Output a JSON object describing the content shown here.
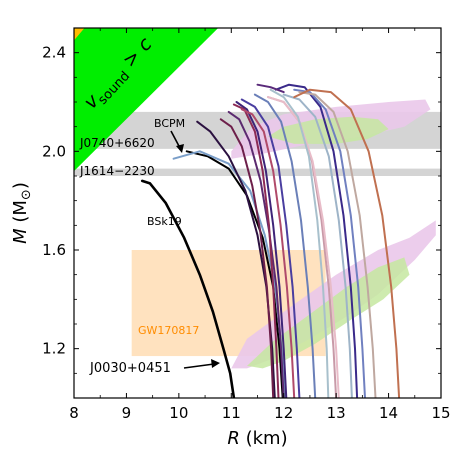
{
  "chart_data": {
    "type": "line",
    "title": "",
    "xlabel_var": "R",
    "xlabel_unit": "(km)",
    "ylabel_var": "M",
    "ylabel_unit": "(M",
    "ylabel_close": ")",
    "xlim": [
      8,
      15
    ],
    "ylim": [
      1.0,
      2.5
    ],
    "x_ticks": [
      8,
      9,
      10,
      11,
      12,
      13,
      14,
      15
    ],
    "y_ticks": [
      1.2,
      1.6,
      2.0,
      2.4
    ],
    "x_tick_labels": [
      "8",
      "9",
      "10",
      "11",
      "12",
      "13",
      "14",
      "15"
    ],
    "y_tick_labels": [
      "1.2",
      "1.6",
      "2.0",
      "2.4"
    ],
    "causality": {
      "label_main": "v",
      "label_sub": "sound",
      "label_rest": " > c",
      "fill_color": "#00ee00",
      "corner_color": "#ffbb00"
    },
    "mass_bands": [
      {
        "name": "J0740+6620",
        "m_low": 2.01,
        "m_high": 2.16,
        "color": "#d4d4d4"
      },
      {
        "name": "J1614−2230",
        "m_low": 1.9,
        "m_high": 1.93,
        "color": "#d4d4d4"
      }
    ],
    "gw_box": {
      "name": "GW170817",
      "r_min": 9.1,
      "r_max": 12.8,
      "m_min": 1.17,
      "m_max": 1.6,
      "color": "#ffe2bf",
      "label_color": "#ff8c00"
    },
    "nicer_j0740": {
      "outer_color": "#eac8ea",
      "inner_color": "#c5e8a0",
      "outer": [
        [
          11.0,
          2.0
        ],
        [
          11.4,
          2.1
        ],
        [
          12.0,
          2.15
        ],
        [
          13.0,
          2.18
        ],
        [
          14.0,
          2.2
        ],
        [
          14.7,
          2.21
        ],
        [
          14.8,
          2.17
        ],
        [
          14.3,
          2.1
        ],
        [
          13.5,
          2.06
        ],
        [
          12.5,
          2.03
        ],
        [
          11.6,
          1.99
        ],
        [
          11.0,
          1.97
        ]
      ],
      "inner": [
        [
          11.7,
          2.06
        ],
        [
          12.0,
          2.1
        ],
        [
          12.6,
          2.13
        ],
        [
          13.3,
          2.14
        ],
        [
          13.8,
          2.13
        ],
        [
          14.0,
          2.09
        ],
        [
          13.6,
          2.05
        ],
        [
          13.0,
          2.03
        ],
        [
          12.2,
          2.03
        ]
      ]
    },
    "nicer_j0030": {
      "outer_color": "#eac8ea",
      "inner_color": "#c5e8a0",
      "outer": [
        [
          11.0,
          1.12
        ],
        [
          11.3,
          1.24
        ],
        [
          12.2,
          1.38
        ],
        [
          13.0,
          1.5
        ],
        [
          13.8,
          1.6
        ],
        [
          14.4,
          1.65
        ],
        [
          14.9,
          1.72
        ],
        [
          14.9,
          1.66
        ],
        [
          14.5,
          1.56
        ],
        [
          13.8,
          1.42
        ],
        [
          13.2,
          1.33
        ],
        [
          12.5,
          1.24
        ],
        [
          11.8,
          1.16
        ],
        [
          11.3,
          1.12
        ]
      ],
      "inner": [
        [
          11.3,
          1.13
        ],
        [
          11.8,
          1.23
        ],
        [
          12.5,
          1.34
        ],
        [
          13.2,
          1.45
        ],
        [
          13.8,
          1.53
        ],
        [
          14.3,
          1.57
        ],
        [
          14.4,
          1.5
        ],
        [
          13.9,
          1.4
        ],
        [
          13.3,
          1.32
        ],
        [
          12.6,
          1.22
        ],
        [
          12.0,
          1.15
        ],
        [
          11.6,
          1.12
        ]
      ]
    },
    "annotations": {
      "bcpm": "BCPM",
      "bsk19": "BSk19",
      "j0030": "J0030+0451"
    },
    "series": [
      {
        "color": "#000000",
        "width": 2.6,
        "points": [
          [
            11.05,
            1.0
          ],
          [
            10.98,
            1.1
          ],
          [
            10.85,
            1.2
          ],
          [
            10.65,
            1.35
          ],
          [
            10.4,
            1.5
          ],
          [
            10.1,
            1.65
          ],
          [
            9.75,
            1.79
          ],
          [
            9.45,
            1.87
          ],
          [
            9.3,
            1.88
          ]
        ]
      },
      {
        "color": "#000000",
        "width": 2.0,
        "points": [
          [
            11.98,
            1.0
          ],
          [
            11.92,
            1.2
          ],
          [
            11.8,
            1.45
          ],
          [
            11.6,
            1.65
          ],
          [
            11.3,
            1.82
          ],
          [
            10.95,
            1.93
          ],
          [
            10.55,
            1.98
          ],
          [
            10.15,
            2.0
          ]
        ]
      },
      {
        "color": "#7a9ec8",
        "width": 2.0,
        "points": [
          [
            12.02,
            1.0
          ],
          [
            11.96,
            1.2
          ],
          [
            11.84,
            1.45
          ],
          [
            11.64,
            1.66
          ],
          [
            11.36,
            1.84
          ],
          [
            10.95,
            1.95
          ],
          [
            10.4,
            2.0
          ],
          [
            9.9,
            1.97
          ]
        ]
      },
      {
        "color": "#2b1140",
        "width": 2.0,
        "points": [
          [
            11.83,
            1.0
          ],
          [
            11.78,
            1.2
          ],
          [
            11.67,
            1.45
          ],
          [
            11.5,
            1.66
          ],
          [
            11.27,
            1.84
          ],
          [
            10.95,
            1.98
          ],
          [
            10.6,
            2.08
          ],
          [
            10.35,
            2.12
          ]
        ]
      },
      {
        "color": "#6d1f4a",
        "width": 2.0,
        "points": [
          [
            11.8,
            1.0
          ],
          [
            11.76,
            1.2
          ],
          [
            11.68,
            1.45
          ],
          [
            11.55,
            1.68
          ],
          [
            11.4,
            1.86
          ],
          [
            11.2,
            2.02
          ],
          [
            11.0,
            2.1
          ],
          [
            10.8,
            2.13
          ]
        ]
      },
      {
        "color": "#5b2a6f",
        "width": 2.0,
        "points": [
          [
            12.0,
            1.0
          ],
          [
            11.95,
            1.2
          ],
          [
            11.86,
            1.45
          ],
          [
            11.72,
            1.68
          ],
          [
            11.56,
            1.88
          ],
          [
            11.35,
            2.04
          ],
          [
            11.15,
            2.13
          ],
          [
            10.95,
            2.16
          ]
        ]
      },
      {
        "color": "#3e2478",
        "width": 2.0,
        "points": [
          [
            12.05,
            1.0
          ],
          [
            12.0,
            1.2
          ],
          [
            11.92,
            1.45
          ],
          [
            11.8,
            1.7
          ],
          [
            11.66,
            1.92
          ],
          [
            11.5,
            2.08
          ],
          [
            11.3,
            2.17
          ],
          [
            11.1,
            2.2
          ]
        ]
      },
      {
        "color": "#8c2a55",
        "width": 2.0,
        "points": [
          [
            11.9,
            1.0
          ],
          [
            11.86,
            1.2
          ],
          [
            11.8,
            1.45
          ],
          [
            11.72,
            1.7
          ],
          [
            11.6,
            1.92
          ],
          [
            11.45,
            2.08
          ],
          [
            11.25,
            2.17
          ],
          [
            11.05,
            2.19
          ]
        ]
      },
      {
        "color": "#b04a6a",
        "width": 2.0,
        "points": [
          [
            12.2,
            1.0
          ],
          [
            12.15,
            1.2
          ],
          [
            12.06,
            1.45
          ],
          [
            11.94,
            1.7
          ],
          [
            11.8,
            1.92
          ],
          [
            11.62,
            2.08
          ],
          [
            11.4,
            2.15
          ],
          [
            11.2,
            2.17
          ]
        ]
      },
      {
        "color": "#4a3ea0",
        "width": 2.0,
        "points": [
          [
            12.3,
            1.0
          ],
          [
            12.25,
            1.2
          ],
          [
            12.17,
            1.45
          ],
          [
            12.05,
            1.7
          ],
          [
            11.9,
            1.94
          ],
          [
            11.7,
            2.1
          ],
          [
            11.45,
            2.18
          ],
          [
            11.2,
            2.21
          ]
        ]
      },
      {
        "color": "#6a7fb8",
        "width": 2.0,
        "points": [
          [
            12.6,
            1.0
          ],
          [
            12.55,
            1.2
          ],
          [
            12.46,
            1.45
          ],
          [
            12.33,
            1.72
          ],
          [
            12.15,
            1.96
          ],
          [
            11.95,
            2.12
          ],
          [
            11.7,
            2.2
          ],
          [
            11.45,
            2.23
          ]
        ]
      },
      {
        "color": "#c89aa8",
        "width": 2.0,
        "points": [
          [
            13.0,
            1.0
          ],
          [
            12.95,
            1.2
          ],
          [
            12.86,
            1.45
          ],
          [
            12.72,
            1.72
          ],
          [
            12.54,
            1.96
          ],
          [
            12.3,
            2.12
          ],
          [
            12.0,
            2.2
          ],
          [
            11.7,
            2.22
          ]
        ]
      },
      {
        "color": "#e8bcc8",
        "width": 2.0,
        "points": [
          [
            13.05,
            1.0
          ],
          [
            13.0,
            1.2
          ],
          [
            12.9,
            1.45
          ],
          [
            12.75,
            1.72
          ],
          [
            12.55,
            1.96
          ],
          [
            12.3,
            2.12
          ],
          [
            12.0,
            2.2
          ],
          [
            11.7,
            2.22
          ]
        ]
      },
      {
        "color": "#a8c0cc",
        "width": 2.0,
        "points": [
          [
            12.85,
            1.0
          ],
          [
            12.82,
            1.2
          ],
          [
            12.75,
            1.45
          ],
          [
            12.64,
            1.72
          ],
          [
            12.48,
            1.98
          ],
          [
            12.27,
            2.14
          ],
          [
            12.0,
            2.22
          ],
          [
            11.75,
            2.25
          ]
        ]
      },
      {
        "color": "#9eb4c8",
        "width": 2.0,
        "points": [
          [
            13.3,
            1.0
          ],
          [
            13.26,
            1.2
          ],
          [
            13.18,
            1.45
          ],
          [
            13.05,
            1.72
          ],
          [
            12.86,
            1.98
          ],
          [
            12.6,
            2.14
          ],
          [
            12.3,
            2.21
          ],
          [
            12.0,
            2.23
          ]
        ]
      },
      {
        "color": "#3a2a8a",
        "width": 2.0,
        "points": [
          [
            13.4,
            1.0
          ],
          [
            13.36,
            1.2
          ],
          [
            13.28,
            1.45
          ],
          [
            13.14,
            1.74
          ],
          [
            12.95,
            2.0
          ],
          [
            12.7,
            2.18
          ],
          [
            12.4,
            2.26
          ],
          [
            12.1,
            2.27
          ],
          [
            11.85,
            2.25
          ]
        ]
      },
      {
        "color": "#7080c0",
        "width": 2.0,
        "points": [
          [
            13.55,
            1.0
          ],
          [
            13.5,
            1.2
          ],
          [
            13.42,
            1.45
          ],
          [
            13.28,
            1.74
          ],
          [
            13.08,
            2.0
          ],
          [
            12.8,
            2.17
          ],
          [
            12.5,
            2.24
          ],
          [
            12.2,
            2.25
          ]
        ]
      },
      {
        "color": "#bfa8a0",
        "width": 2.0,
        "points": [
          [
            13.75,
            1.0
          ],
          [
            13.7,
            1.2
          ],
          [
            13.6,
            1.45
          ],
          [
            13.45,
            1.74
          ],
          [
            13.22,
            2.0
          ],
          [
            12.95,
            2.16
          ],
          [
            12.6,
            2.23
          ],
          [
            12.3,
            2.24
          ]
        ]
      },
      {
        "color": "#5a2a7a",
        "width": 2.0,
        "points": [
          [
            11.5,
            2.27
          ],
          [
            11.75,
            2.26
          ],
          [
            12.0,
            2.24
          ]
        ]
      },
      {
        "color": "#c07050",
        "width": 2.0,
        "points": [
          [
            14.2,
            1.0
          ],
          [
            14.15,
            1.2
          ],
          [
            14.05,
            1.45
          ],
          [
            13.88,
            1.74
          ],
          [
            13.62,
            2.0
          ],
          [
            13.28,
            2.17
          ],
          [
            12.9,
            2.24
          ],
          [
            12.5,
            2.25
          ],
          [
            12.2,
            2.22
          ]
        ]
      }
    ]
  }
}
